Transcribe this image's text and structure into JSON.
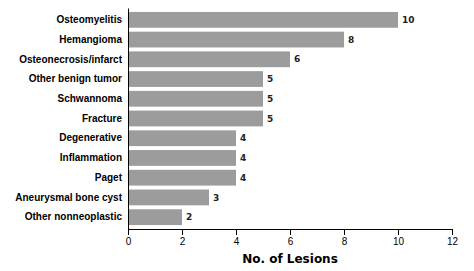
{
  "chart_data": {
    "type": "bar",
    "orientation": "horizontal",
    "categories": [
      "Other nonneoplastic",
      "Aneurysmal bone cyst",
      "Paget",
      "Inflammation",
      "Degenerative",
      "Fracture",
      "Schwannoma",
      "Other benign tumor",
      "Osteonecrosis/infarct",
      "Hemangioma",
      "Osteomyelitis"
    ],
    "values": [
      2,
      3,
      4,
      4,
      4,
      5,
      5,
      5,
      6,
      8,
      10
    ],
    "color": "#9c9c9c",
    "xlabel": "No. of Lesions",
    "xlim": [
      0,
      12
    ],
    "xticks": [
      0,
      2,
      4,
      6,
      8,
      10,
      12
    ],
    "data_labels": true,
    "grid": false
  }
}
